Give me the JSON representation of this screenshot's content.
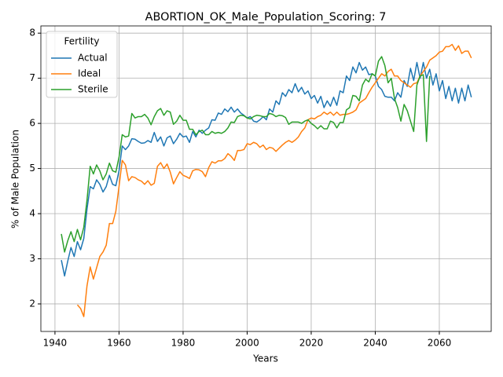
{
  "chart_data": {
    "type": "line",
    "title": "ABORTION_OK_Male_Population_Scoring: 7",
    "x_label": "Years",
    "y_label": "% of Male Population",
    "legend_title": "Fertility",
    "legend_loc": "upper left",
    "grid": true,
    "xlim": [
      1935.6,
      2076.2
    ],
    "ylim": [
      1.39,
      8.16
    ],
    "xticks": [
      1940,
      1960,
      1980,
      2000,
      2020,
      2040,
      2060
    ],
    "yticks": [
      2,
      3,
      4,
      5,
      6,
      7,
      8
    ],
    "x": [
      1942,
      1943,
      1944,
      1945,
      1946,
      1947,
      1948,
      1949,
      1950,
      1951,
      1952,
      1953,
      1954,
      1955,
      1956,
      1957,
      1958,
      1959,
      1960,
      1961,
      1962,
      1963,
      1964,
      1965,
      1966,
      1967,
      1968,
      1969,
      1970,
      1971,
      1972,
      1973,
      1974,
      1975,
      1976,
      1977,
      1978,
      1979,
      1980,
      1981,
      1982,
      1983,
      1984,
      1985,
      1986,
      1987,
      1988,
      1989,
      1990,
      1991,
      1992,
      1993,
      1994,
      1995,
      1996,
      1997,
      1998,
      1999,
      2000,
      2001,
      2002,
      2003,
      2004,
      2005,
      2006,
      2007,
      2008,
      2009,
      2010,
      2011,
      2012,
      2013,
      2014,
      2015,
      2016,
      2017,
      2018,
      2019,
      2020,
      2021,
      2022,
      2023,
      2024,
      2025,
      2026,
      2027,
      2028,
      2029,
      2030,
      2031,
      2032,
      2033,
      2034,
      2035,
      2036,
      2037,
      2038,
      2039,
      2040,
      2041,
      2042,
      2043,
      2044,
      2045,
      2046,
      2047,
      2048,
      2049,
      2050,
      2051,
      2052,
      2053,
      2054,
      2055,
      2056,
      2057,
      2058,
      2059,
      2060,
      2061,
      2062,
      2063,
      2064,
      2065,
      2066,
      2067,
      2068,
      2069,
      2070
    ],
    "series": [
      {
        "name": "Actual",
        "color": "#1f77b4",
        "values": [
          2.97,
          2.62,
          2.95,
          3.25,
          3.05,
          3.38,
          3.2,
          3.45,
          4.1,
          4.6,
          4.55,
          4.75,
          4.65,
          4.48,
          4.6,
          4.85,
          4.65,
          4.62,
          4.95,
          5.5,
          5.42,
          5.5,
          5.66,
          5.65,
          5.6,
          5.56,
          5.57,
          5.62,
          5.58,
          5.8,
          5.6,
          5.7,
          5.5,
          5.68,
          5.72,
          5.55,
          5.65,
          5.78,
          5.7,
          5.72,
          5.58,
          5.82,
          5.7,
          5.85,
          5.78,
          5.85,
          5.9,
          6.08,
          6.07,
          6.23,
          6.2,
          6.32,
          6.26,
          6.36,
          6.25,
          6.32,
          6.23,
          6.18,
          6.12,
          6.15,
          6.05,
          6.03,
          6.08,
          6.15,
          6.08,
          6.32,
          6.25,
          6.5,
          6.42,
          6.68,
          6.6,
          6.75,
          6.68,
          6.88,
          6.7,
          6.8,
          6.65,
          6.72,
          6.55,
          6.62,
          6.45,
          6.6,
          6.35,
          6.5,
          6.38,
          6.58,
          6.4,
          6.72,
          6.68,
          7.05,
          6.95,
          7.25,
          7.12,
          7.35,
          7.18,
          7.25,
          7.08,
          7.1,
          7.05,
          6.82,
          6.75,
          6.6,
          6.58,
          6.58,
          6.5,
          6.68,
          6.58,
          6.95,
          6.82,
          7.22,
          6.95,
          7.35,
          7.0,
          7.35,
          7.0,
          7.2,
          6.85,
          7.1,
          6.72,
          6.95,
          6.55,
          6.82,
          6.5,
          6.78,
          6.45,
          6.78,
          6.5,
          6.85,
          6.58
        ]
      },
      {
        "name": "Ideal",
        "color": "#ff7f0e",
        "values": [
          null,
          null,
          null,
          null,
          null,
          1.98,
          1.9,
          1.72,
          2.4,
          2.82,
          2.55,
          2.8,
          3.05,
          3.15,
          3.3,
          3.78,
          3.78,
          4.05,
          4.6,
          5.18,
          5.08,
          4.73,
          4.82,
          4.8,
          4.75,
          4.72,
          4.65,
          4.73,
          4.63,
          4.67,
          5.05,
          5.13,
          5.0,
          5.1,
          4.92,
          4.66,
          4.8,
          4.93,
          4.85,
          4.82,
          4.78,
          4.95,
          4.98,
          4.97,
          4.93,
          4.82,
          5.02,
          5.15,
          5.12,
          5.17,
          5.17,
          5.22,
          5.33,
          5.27,
          5.18,
          5.4,
          5.4,
          5.42,
          5.55,
          5.53,
          5.58,
          5.55,
          5.47,
          5.52,
          5.42,
          5.47,
          5.45,
          5.38,
          5.45,
          5.52,
          5.58,
          5.62,
          5.58,
          5.63,
          5.7,
          5.82,
          5.9,
          6.08,
          6.12,
          6.1,
          6.15,
          6.18,
          6.25,
          6.2,
          6.25,
          6.18,
          6.25,
          6.18,
          6.2,
          6.2,
          6.22,
          6.25,
          6.3,
          6.45,
          6.5,
          6.55,
          6.68,
          6.8,
          6.9,
          7.0,
          7.1,
          7.05,
          7.15,
          7.2,
          7.05,
          7.05,
          6.95,
          6.9,
          6.85,
          6.8,
          6.88,
          6.9,
          7.05,
          7.15,
          7.25,
          7.4,
          7.45,
          7.5,
          7.58,
          7.6,
          7.7,
          7.7,
          7.75,
          7.62,
          7.72,
          7.55,
          7.6,
          7.6,
          7.45
        ]
      },
      {
        "name": "Sterile",
        "color": "#2ca02c",
        "values": [
          3.55,
          3.15,
          3.4,
          3.6,
          3.38,
          3.65,
          3.42,
          3.7,
          4.3,
          5.05,
          4.88,
          5.08,
          4.95,
          4.75,
          4.88,
          5.12,
          4.95,
          4.92,
          5.25,
          5.75,
          5.7,
          5.72,
          6.22,
          6.12,
          6.15,
          6.15,
          6.2,
          6.12,
          5.97,
          6.15,
          6.28,
          6.33,
          6.18,
          6.28,
          6.25,
          5.98,
          6.05,
          6.18,
          6.07,
          6.07,
          5.87,
          5.87,
          5.75,
          5.82,
          5.85,
          5.75,
          5.75,
          5.82,
          5.78,
          5.8,
          5.78,
          5.82,
          5.9,
          6.03,
          6.02,
          6.15,
          6.18,
          6.17,
          6.12,
          6.1,
          6.15,
          6.18,
          6.17,
          6.15,
          6.15,
          6.22,
          6.2,
          6.15,
          6.18,
          6.17,
          6.13,
          5.98,
          6.03,
          6.03,
          6.03,
          6.0,
          6.05,
          6.08,
          6.0,
          5.95,
          5.88,
          5.95,
          5.88,
          5.88,
          6.05,
          6.02,
          5.9,
          6.02,
          6.02,
          6.3,
          6.35,
          6.62,
          6.6,
          6.5,
          6.85,
          6.98,
          6.92,
          7.1,
          7.05,
          7.38,
          7.48,
          7.28,
          6.9,
          7.0,
          6.55,
          6.35,
          6.05,
          6.42,
          6.28,
          6.05,
          5.82,
          6.85,
          7.05,
          7.08,
          5.6,
          7.05,
          null,
          null,
          null,
          null,
          null,
          null,
          null,
          null,
          null,
          null,
          null,
          null,
          null
        ]
      }
    ]
  }
}
